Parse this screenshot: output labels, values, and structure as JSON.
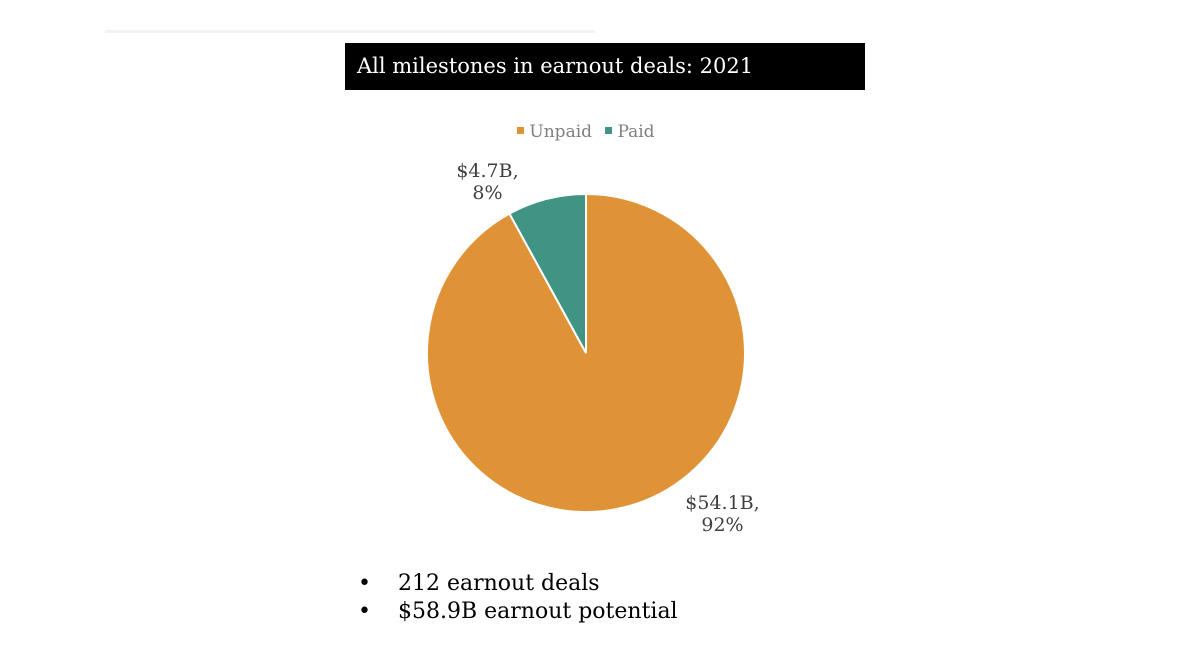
{
  "title": "All milestones in earnout deals: 2021",
  "chart_data": {
    "type": "pie",
    "title": "All milestones in earnout deals: 2021",
    "legend": [
      "Unpaid",
      "Paid"
    ],
    "legend_position": "top",
    "slices": [
      {
        "name": "Unpaid",
        "value": 54.1,
        "percent": 92,
        "label_value": "$54.1B,",
        "label_pct": "92%",
        "color": "#E09236"
      },
      {
        "name": "Paid",
        "value": 4.7,
        "percent": 8,
        "label_value": "$4.7B,",
        "label_pct": "8%",
        "color": "#3F9484"
      }
    ]
  },
  "bullets": [
    "212 earnout deals",
    "$58.9B earnout potential"
  ],
  "bullet_symbol": "•"
}
